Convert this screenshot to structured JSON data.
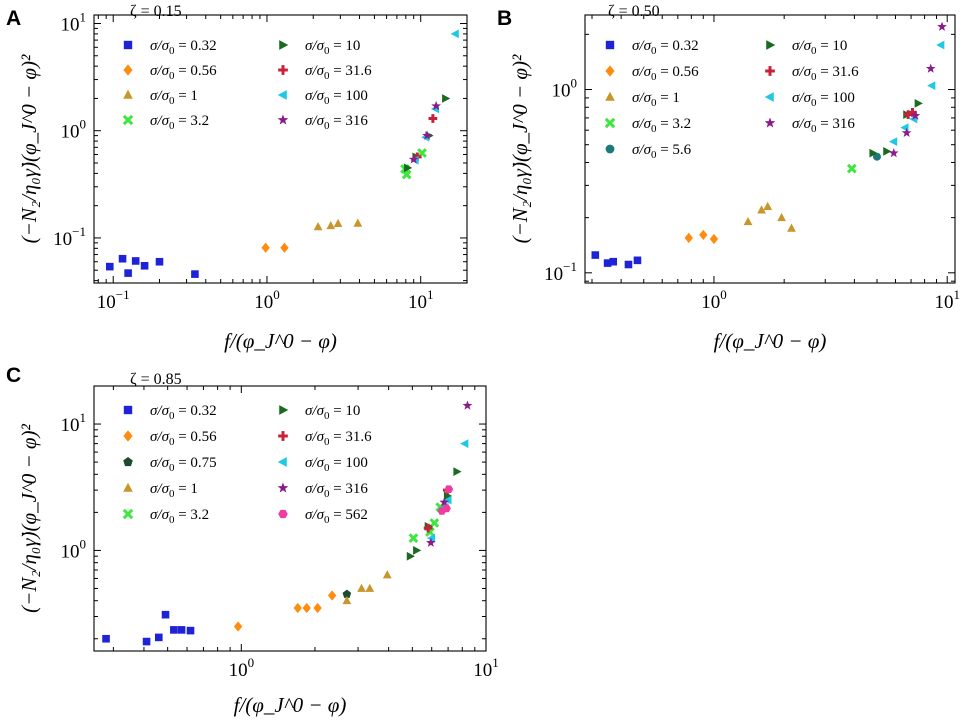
{
  "figure": {
    "styles": {
      "0.32": {
        "marker": "square",
        "color": "#1f23d6"
      },
      "0.56": {
        "marker": "diamond",
        "color": "#ff8c0f"
      },
      "0.75": {
        "marker": "pentagon",
        "color": "#1e4a32"
      },
      "1": {
        "marker": "triangle",
        "color": "#c8962a"
      },
      "3.2": {
        "marker": "x",
        "color": "#3ee63e"
      },
      "5.6": {
        "marker": "circle",
        "color": "#1e7a78"
      },
      "10": {
        "marker": "tri-right",
        "color": "#1a6b1f"
      },
      "31.6": {
        "marker": "plus",
        "color": "#c8213a"
      },
      "100": {
        "marker": "tri-left",
        "color": "#1ec8e6"
      },
      "316": {
        "marker": "star",
        "color": "#8b1a8b"
      },
      "562": {
        "marker": "hexagon",
        "color": "#ee3ca0"
      }
    }
  },
  "chart_data": [
    {
      "type": "scatter",
      "panel": "A",
      "title": "ζ = 0.15",
      "xlabel": "f/(φ_J^0 − φ)",
      "ylabel": "(−N₂/η₀γ̇)(φ_J^0 − φ)²",
      "xscale": "log",
      "yscale": "log",
      "xlim": [
        0.075,
        20
      ],
      "ylim": [
        0.038,
        12
      ],
      "xticks": [
        {
          "v": 0.1,
          "base": "10",
          "exp": "−1"
        },
        {
          "v": 1,
          "base": "10",
          "exp": "0"
        },
        {
          "v": 10,
          "base": "10",
          "exp": "1"
        }
      ],
      "yticks": [
        {
          "v": 0.1,
          "base": "10",
          "exp": "−1"
        },
        {
          "v": 1,
          "base": "10",
          "exp": "0"
        },
        {
          "v": 10,
          "base": "10",
          "exp": "1"
        }
      ],
      "legend": [
        [
          "0.32",
          "σ/σ",
          "0",
          " = 0.32"
        ],
        [
          "0.56",
          "σ/σ",
          "0",
          " = 0.56"
        ],
        [
          "1",
          "σ/σ",
          "0",
          " = 1"
        ],
        [
          "3.2",
          "σ/σ",
          "0",
          " = 3.2"
        ],
        [
          "10",
          "σ/σ",
          "0",
          " = 10"
        ],
        [
          "31.6",
          "σ/σ",
          "0",
          " = 31.6"
        ],
        [
          "100",
          "σ/σ",
          "0",
          " = 100"
        ],
        [
          "316",
          "σ/σ",
          "0",
          " = 316"
        ]
      ],
      "series": [
        {
          "name": "0.32",
          "x": [
            0.095,
            0.115,
            0.125,
            0.14,
            0.16,
            0.2,
            0.34
          ],
          "y": [
            0.054,
            0.064,
            0.047,
            0.061,
            0.055,
            0.06,
            0.046
          ]
        },
        {
          "name": "0.56",
          "x": [
            0.98,
            1.3
          ],
          "y": [
            0.081,
            0.081
          ]
        },
        {
          "name": "1",
          "x": [
            2.15,
            2.6,
            2.9,
            3.9
          ],
          "y": [
            0.127,
            0.13,
            0.136,
            0.137
          ]
        },
        {
          "name": "3.2",
          "x": [
            7.9,
            8.1,
            10.2
          ],
          "y": [
            0.44,
            0.39,
            0.62
          ]
        },
        {
          "name": "10",
          "x": [
            8.2,
            9.3,
            11.3,
            14.5
          ],
          "y": [
            0.45,
            0.57,
            0.9,
            2.0
          ]
        },
        {
          "name": "31.6",
          "x": [
            9.5,
            12.0
          ],
          "y": [
            0.57,
            1.3
          ]
        },
        {
          "name": "100",
          "x": [
            9.2,
            10.8,
            12.5,
            16.8
          ],
          "y": [
            0.53,
            0.87,
            1.6,
            8.0
          ]
        },
        {
          "name": "316",
          "x": [
            9.0,
            11.0,
            12.6
          ],
          "y": [
            0.54,
            0.9,
            1.7
          ]
        }
      ]
    },
    {
      "type": "scatter",
      "panel": "B",
      "title": "ζ = 0.50",
      "xlabel": "f/(φ_J^0 − φ)",
      "ylabel": "(−N₂/η₀γ̇)(φ_J^0 − φ)²",
      "xscale": "log",
      "yscale": "log",
      "xlim": [
        0.28,
        10.8
      ],
      "ylim": [
        0.088,
        2.55
      ],
      "xticks": [
        {
          "v": 1,
          "base": "10",
          "exp": "0"
        },
        {
          "v": 10,
          "base": "10",
          "exp": "1"
        }
      ],
      "yticks": [
        {
          "v": 0.1,
          "base": "10",
          "exp": "−1"
        },
        {
          "v": 1,
          "base": "10",
          "exp": "0"
        }
      ],
      "legend": [
        [
          "0.32",
          "σ/σ",
          "0",
          " = 0.32"
        ],
        [
          "0.56",
          "σ/σ",
          "0",
          " = 0.56"
        ],
        [
          "1",
          "σ/σ",
          "0",
          " = 1"
        ],
        [
          "3.2",
          "σ/σ",
          "0",
          " = 3.2"
        ],
        [
          "5.6",
          "σ/σ",
          "0",
          " = 5.6"
        ],
        [
          "10",
          "σ/σ",
          "0",
          " = 10"
        ],
        [
          "31.6",
          "σ/σ",
          "0",
          " = 31.6"
        ],
        [
          "100",
          "σ/σ",
          "0",
          " = 100"
        ],
        [
          "316",
          "σ/σ",
          "0",
          " = 316"
        ]
      ],
      "series": [
        {
          "name": "0.32",
          "x": [
            0.31,
            0.35,
            0.37,
            0.43,
            0.47
          ],
          "y": [
            0.125,
            0.113,
            0.115,
            0.111,
            0.117
          ]
        },
        {
          "name": "0.56",
          "x": [
            0.78,
            0.9,
            1.0
          ],
          "y": [
            0.155,
            0.161,
            0.153
          ]
        },
        {
          "name": "1",
          "x": [
            1.4,
            1.6,
            1.7,
            1.95,
            2.15
          ],
          "y": [
            0.19,
            0.22,
            0.23,
            0.2,
            0.175
          ]
        },
        {
          "name": "3.2",
          "x": [
            3.9
          ],
          "y": [
            0.37
          ]
        },
        {
          "name": "5.6",
          "x": [
            5.0
          ],
          "y": [
            0.43
          ]
        },
        {
          "name": "10",
          "x": [
            4.8,
            5.5,
            6.7,
            7.5
          ],
          "y": [
            0.45,
            0.46,
            0.73,
            0.84
          ]
        },
        {
          "name": "31.6",
          "x": [
            6.8,
            7.1
          ],
          "y": [
            0.73,
            0.75
          ]
        },
        {
          "name": "100",
          "x": [
            5.9,
            6.6,
            7.2,
            8.6,
            9.4
          ],
          "y": [
            0.52,
            0.62,
            0.69,
            1.05,
            1.75
          ]
        },
        {
          "name": "316",
          "x": [
            5.9,
            6.7,
            7.3,
            8.5,
            9.5
          ],
          "y": [
            0.45,
            0.58,
            0.72,
            1.3,
            2.2
          ]
        }
      ]
    },
    {
      "type": "scatter",
      "panel": "C",
      "title": "ζ = 0.85",
      "xlabel": "f/(φ_J^0 − φ)",
      "ylabel": "(−N₂/η₀γ̇)(φ_J^0 − φ)²",
      "xscale": "log",
      "yscale": "log",
      "xlim": [
        0.25,
        10
      ],
      "ylim": [
        0.16,
        20
      ],
      "xticks": [
        {
          "v": 1,
          "base": "10",
          "exp": "0"
        },
        {
          "v": 10,
          "base": "10",
          "exp": "1"
        }
      ],
      "yticks": [
        {
          "v": 1,
          "base": "10",
          "exp": "0"
        },
        {
          "v": 10,
          "base": "10",
          "exp": "1"
        }
      ],
      "legend": [
        [
          "0.32",
          "σ/σ",
          "0",
          " = 0.32"
        ],
        [
          "0.56",
          "σ/σ",
          "0",
          " = 0.56"
        ],
        [
          "0.75",
          "σ/σ",
          "0",
          " = 0.75"
        ],
        [
          "1",
          "σ/σ",
          "0",
          " = 1"
        ],
        [
          "3.2",
          "σ/σ",
          "0",
          " = 3.2"
        ],
        [
          "10",
          "σ/σ",
          "0",
          " = 10"
        ],
        [
          "31.6",
          "σ/σ",
          "0",
          " = 31.6"
        ],
        [
          "100",
          "σ/σ",
          "0",
          " = 100"
        ],
        [
          "316",
          "σ/σ",
          "0",
          " = 316"
        ],
        [
          "562",
          "σ/σ",
          "0",
          " = 562"
        ]
      ],
      "series": [
        {
          "name": "0.32",
          "x": [
            0.28,
            0.41,
            0.46,
            0.49,
            0.53,
            0.57,
            0.62
          ],
          "y": [
            0.2,
            0.19,
            0.205,
            0.31,
            0.235,
            0.235,
            0.232
          ]
        },
        {
          "name": "0.56",
          "x": [
            0.97,
            1.7,
            1.85,
            2.05,
            2.35
          ],
          "y": [
            0.25,
            0.35,
            0.35,
            0.35,
            0.44
          ]
        },
        {
          "name": "0.75",
          "x": [
            2.7
          ],
          "y": [
            0.45
          ]
        },
        {
          "name": "1",
          "x": [
            2.7,
            3.1,
            3.35,
            3.95
          ],
          "y": [
            0.4,
            0.5,
            0.5,
            0.64
          ]
        },
        {
          "name": "3.2",
          "x": [
            5.05,
            5.9,
            6.15,
            6.5
          ],
          "y": [
            1.25,
            1.4,
            1.65,
            2.2
          ]
        },
        {
          "name": "10",
          "x": [
            4.9,
            5.2,
            5.8,
            6.95,
            7.6
          ],
          "y": [
            0.9,
            1.0,
            1.55,
            2.7,
            4.2
          ]
        },
        {
          "name": "31.6",
          "x": [
            5.8,
            6.95
          ],
          "y": [
            1.5,
            3.0
          ]
        },
        {
          "name": "100",
          "x": [
            6.0,
            6.8,
            7.0,
            8.2
          ],
          "y": [
            1.25,
            2.2,
            2.5,
            7.0
          ]
        },
        {
          "name": "316",
          "x": [
            5.95,
            6.75,
            8.4
          ],
          "y": [
            1.15,
            2.4,
            14.0
          ]
        },
        {
          "name": "562",
          "x": [
            6.6,
            6.9,
            7.05
          ],
          "y": [
            2.05,
            2.15,
            3.05
          ]
        }
      ]
    }
  ]
}
